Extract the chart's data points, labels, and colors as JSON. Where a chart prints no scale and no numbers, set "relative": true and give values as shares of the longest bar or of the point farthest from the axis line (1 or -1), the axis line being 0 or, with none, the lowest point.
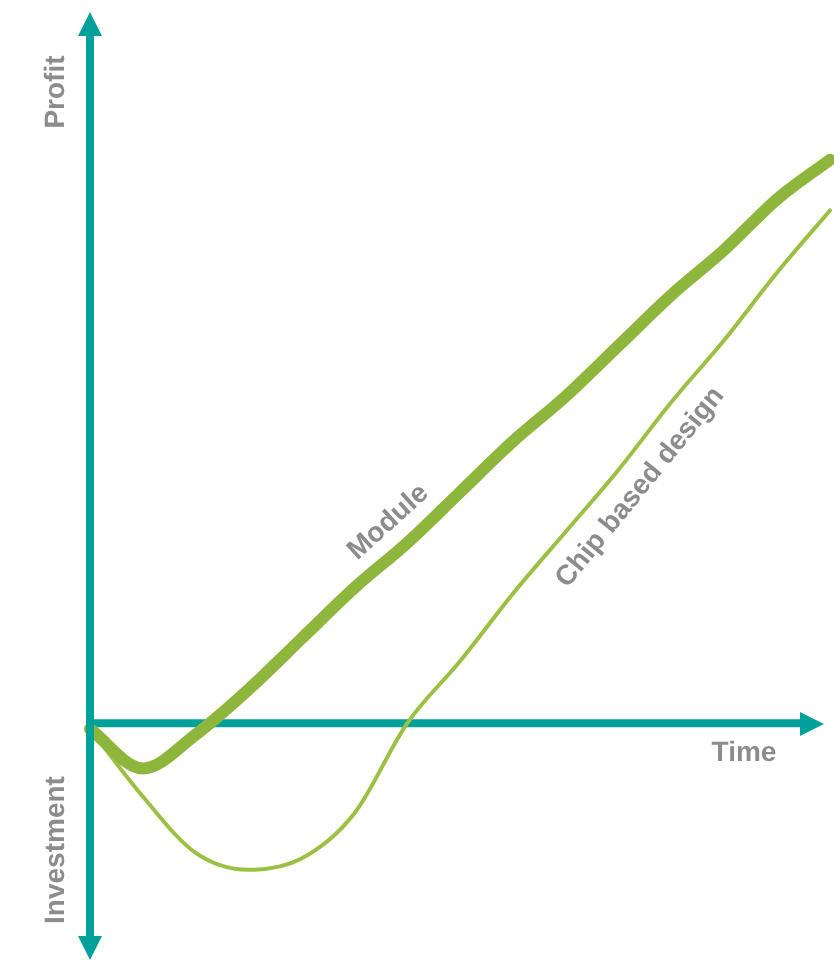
{
  "chart_data": {
    "type": "line",
    "relative": true,
    "xlabel": "Time",
    "ylabel": "Profit",
    "annotations": [
      "Investment"
    ],
    "legend": false,
    "ref_lines": [
      {
        "axis": "y",
        "value": 0,
        "color": "#00a19a"
      }
    ],
    "marker": "none",
    "line_style": "solid",
    "categories": [
      null,
      null,
      null,
      null,
      null,
      null,
      null,
      null,
      null,
      null,
      null,
      null,
      null,
      null,
      null
    ],
    "series": [
      {
        "name": "Module",
        "color": "#8fb63c",
        "values": [
          -0.01,
          -0.08,
          -0.02,
          0.06,
          0.15,
          0.24,
          0.32,
          0.41,
          0.5,
          0.58,
          0.67,
          0.76,
          0.84,
          0.93,
          1
        ]
      },
      {
        "name": "Chip based design",
        "color": "#9cc043",
        "values": [
          -0.01,
          -0.13,
          -0.23,
          -0.26,
          -0.24,
          -0.16,
          0,
          0.11,
          0.23,
          0.34,
          0.45,
          0.57,
          0.68,
          0.8,
          0.91
        ]
      }
    ]
  }
}
